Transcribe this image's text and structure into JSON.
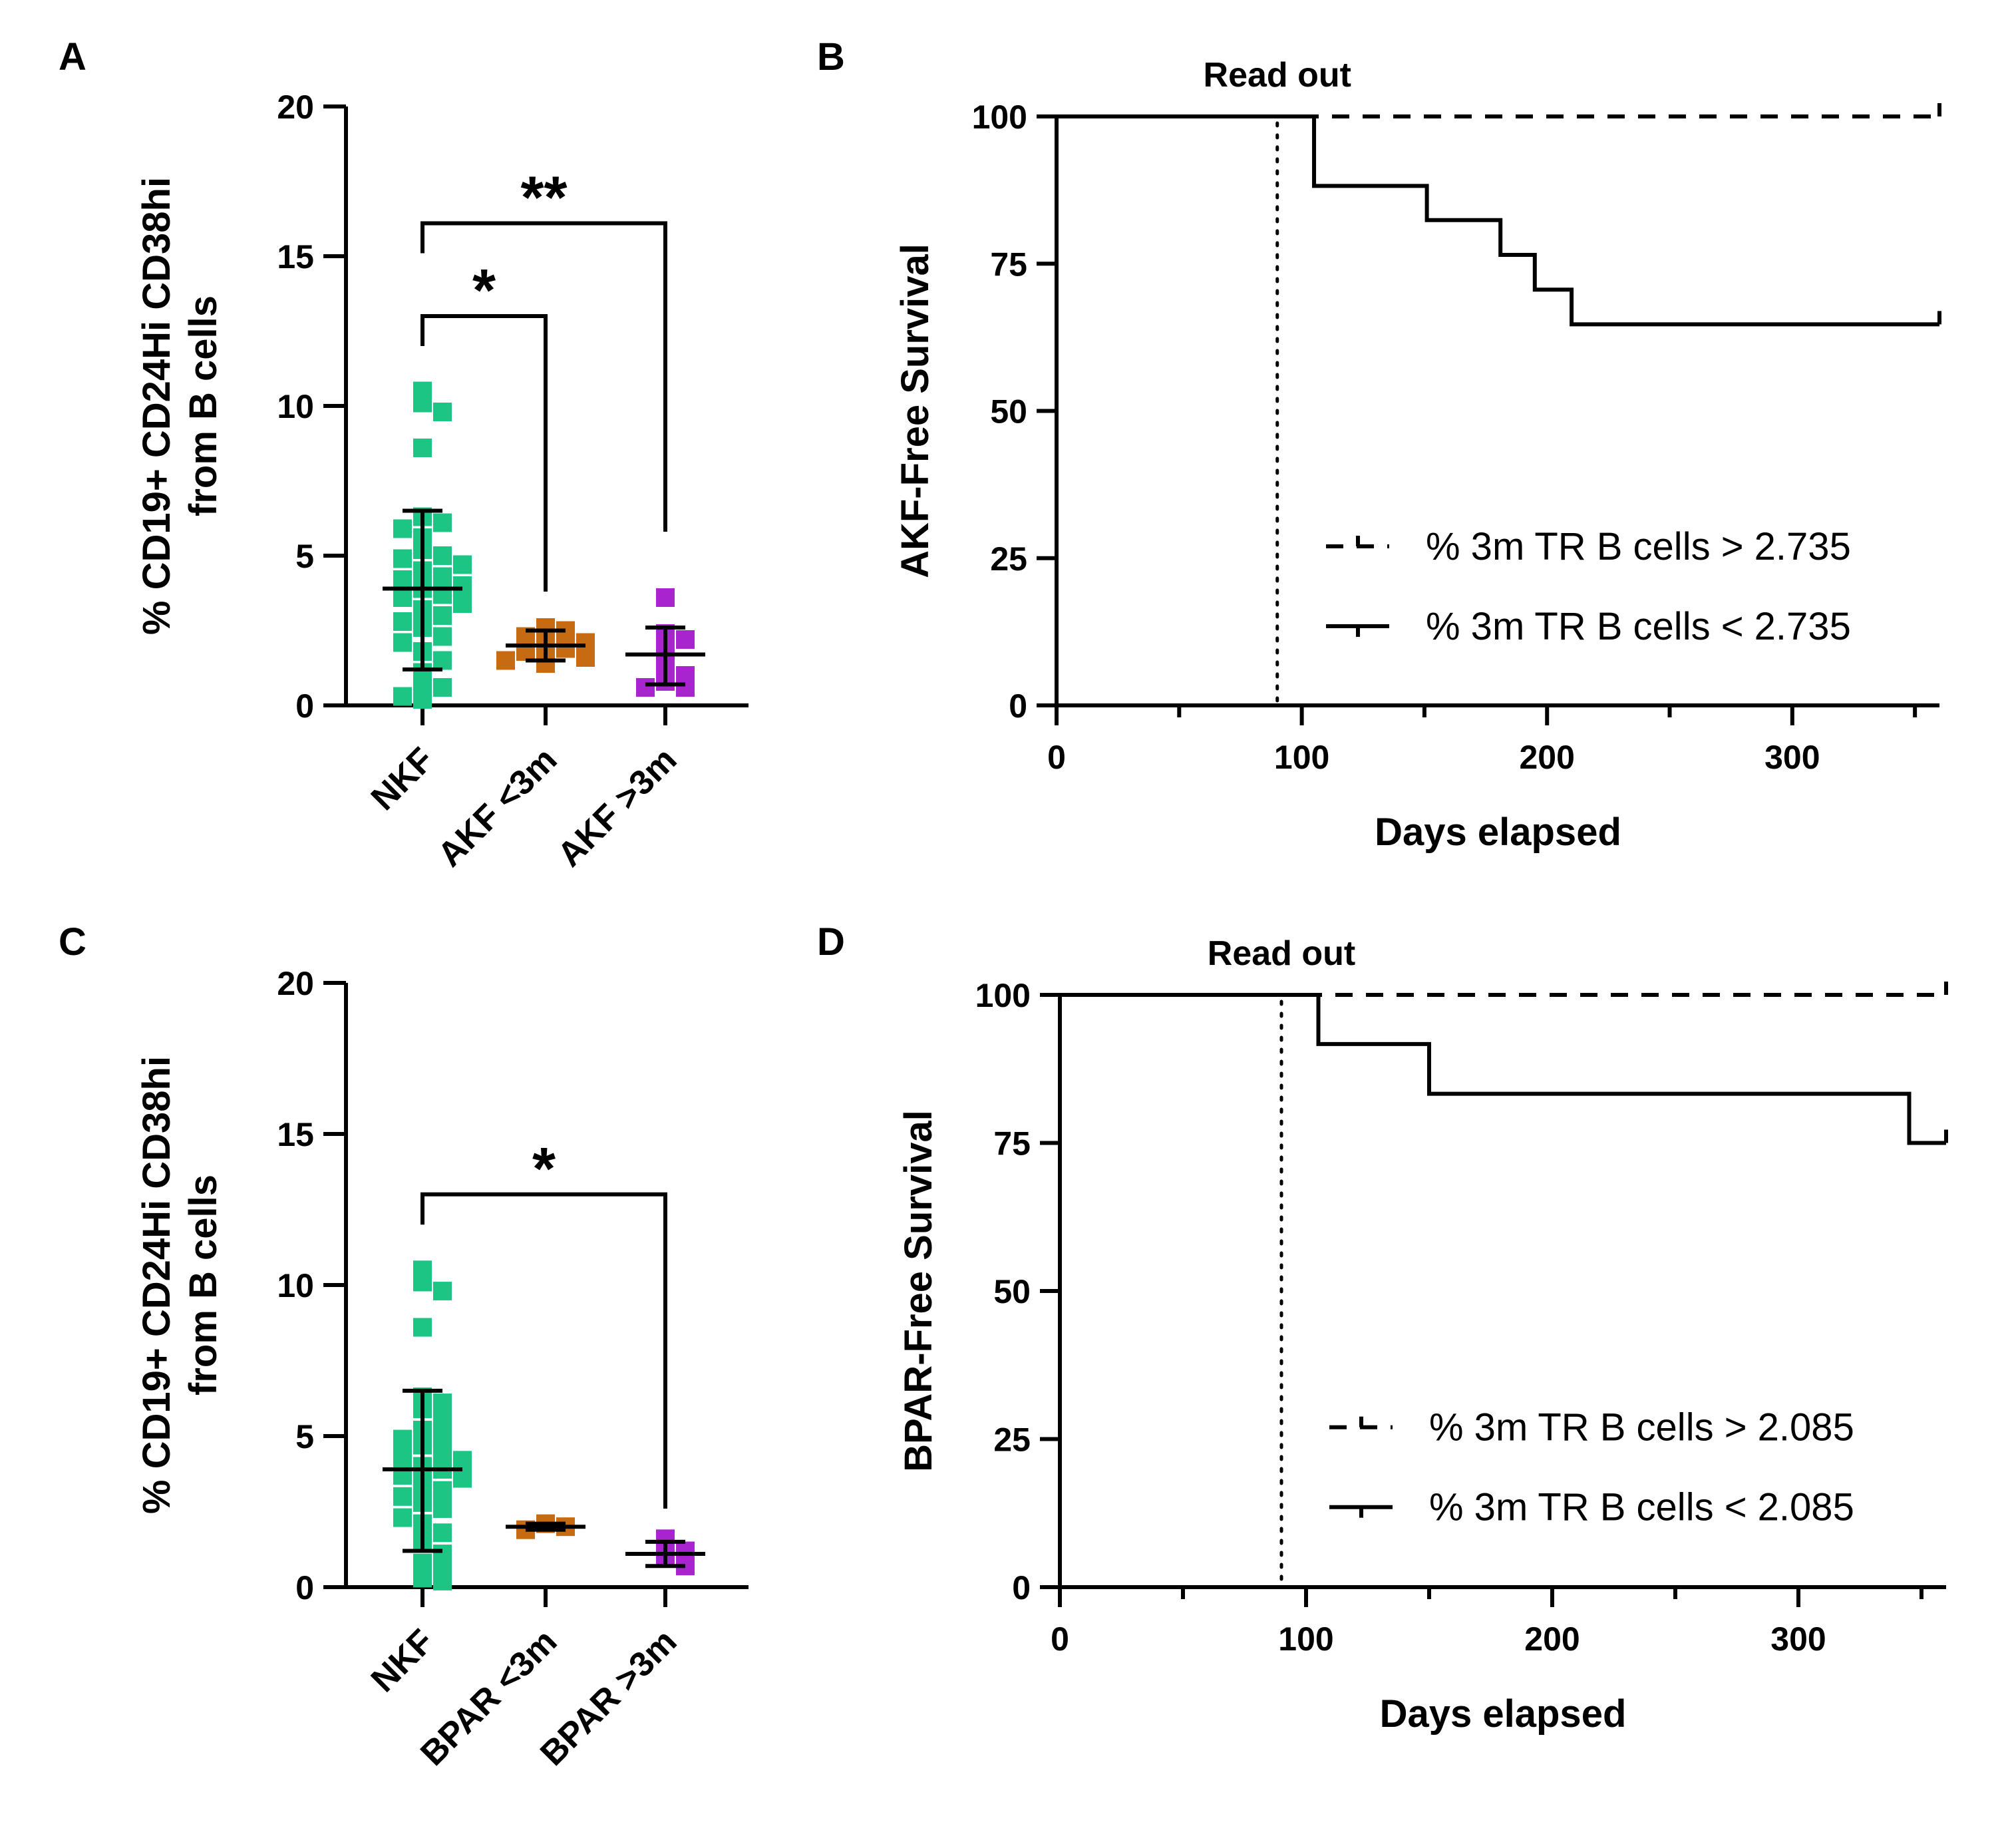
{
  "chart_data": [
    {
      "panel": "A",
      "type": "scatter",
      "ylabel": [
        "% CD19+ CD24Hi CD38hi",
        "from B cells"
      ],
      "ylim": [
        0,
        20
      ],
      "yticks": [
        0,
        5,
        10,
        15,
        20
      ],
      "groups": [
        {
          "name": "NKF",
          "color": "#1cc583",
          "mean": 3.9,
          "sd_low": 1.2,
          "sd_high": 6.5,
          "points": [
            10.5,
            10.1,
            9.8,
            8.6,
            6.3,
            6.1,
            5.9,
            5.6,
            5.2,
            5.0,
            4.9,
            4.7,
            4.5,
            4.3,
            4.2,
            4.0,
            3.9,
            3.7,
            3.6,
            3.4,
            3.2,
            3.0,
            2.8,
            2.6,
            2.3,
            2.1,
            1.8,
            1.5,
            1.1,
            0.8,
            0.6,
            0.3,
            0.2
          ]
        },
        {
          "name": "AKF <3m",
          "color": "#c76b12",
          "mean": 2.0,
          "sd_low": 1.5,
          "sd_high": 2.5,
          "points": [
            2.6,
            2.5,
            2.3,
            2.1,
            2.0,
            1.9,
            1.8,
            1.6,
            1.5,
            1.4
          ]
        },
        {
          "name": "AKF >3m",
          "color": "#a824cf",
          "mean": 1.7,
          "sd_low": 0.7,
          "sd_high": 2.6,
          "points": [
            3.6,
            2.4,
            2.2,
            1.9,
            1.3,
            1.0,
            0.8,
            0.6,
            0.6
          ]
        }
      ],
      "comparisons": [
        {
          "from": 0,
          "to": 1,
          "label": "*"
        },
        {
          "from": 0,
          "to": 2,
          "label": "**"
        }
      ]
    },
    {
      "panel": "B",
      "type": "line",
      "xlabel": "Days elapsed",
      "ylabel": "AKF-Free Survival",
      "xlim": [
        0,
        360
      ],
      "xticks": [
        0,
        100,
        200,
        300
      ],
      "ylim": [
        0,
        100
      ],
      "yticks": [
        0,
        25,
        50,
        75,
        100
      ],
      "annotation": "Read out",
      "readout_day": 90,
      "series": [
        {
          "name": "% 3m TR B cells > 2.735",
          "style": "dashed",
          "x": [
            0,
            360
          ],
          "y": [
            100,
            100
          ]
        },
        {
          "name": "% 3m TR B cells < 2.735",
          "style": "solid",
          "x": [
            0,
            105,
            105,
            151,
            151,
            181,
            181,
            195,
            195,
            210,
            210,
            360
          ],
          "y": [
            100,
            100,
            88.2,
            88.2,
            82.4,
            82.4,
            76.5,
            76.5,
            70.6,
            70.6,
            64.7,
            64.7
          ]
        }
      ]
    },
    {
      "panel": "C",
      "type": "scatter",
      "ylabel": [
        "% CD19+ CD24Hi CD38hi",
        "from B cells"
      ],
      "ylim": [
        0,
        20
      ],
      "yticks": [
        0,
        5,
        10,
        15,
        20
      ],
      "groups": [
        {
          "name": "NKF",
          "color": "#1cc583",
          "mean": 3.9,
          "sd_low": 1.2,
          "sd_high": 6.5,
          "points": [
            10.5,
            10.1,
            9.8,
            8.6,
            6.3,
            6.1,
            5.9,
            5.6,
            5.2,
            5.0,
            4.9,
            4.7,
            4.5,
            4.3,
            4.2,
            4.0,
            3.9,
            3.7,
            3.6,
            3.4,
            3.2,
            3.0,
            2.8,
            2.6,
            2.3,
            2.1,
            1.8,
            1.5,
            1.1,
            0.8,
            0.6,
            0.3,
            0.2
          ]
        },
        {
          "name": "BPAR <3m",
          "color": "#c76b12",
          "mean": 2.0,
          "sd_low": 1.9,
          "sd_high": 2.1,
          "points": [
            2.1,
            2.0,
            1.9
          ]
        },
        {
          "name": "BPAR >3m",
          "color": "#a824cf",
          "mean": 1.1,
          "sd_low": 0.7,
          "sd_high": 1.5,
          "points": [
            1.6,
            1.2,
            1.0,
            0.7
          ]
        }
      ],
      "comparisons": [
        {
          "from": 0,
          "to": 2,
          "label": "*"
        }
      ]
    },
    {
      "panel": "D",
      "type": "line",
      "xlabel": "Days elapsed",
      "ylabel": "BPAR-Free Survival",
      "xlim": [
        0,
        360
      ],
      "xticks": [
        0,
        100,
        200,
        300
      ],
      "ylim": [
        0,
        100
      ],
      "yticks": [
        0,
        25,
        50,
        75,
        100
      ],
      "annotation": "Read out",
      "readout_day": 90,
      "series": [
        {
          "name": "% 3m TR B cells > 2.085",
          "style": "dashed",
          "x": [
            0,
            360
          ],
          "y": [
            100,
            100
          ]
        },
        {
          "name": "% 3m TR B cells < 2.085",
          "style": "solid",
          "x": [
            0,
            105,
            105,
            150,
            150,
            345,
            345,
            360
          ],
          "y": [
            100,
            100,
            91.7,
            91.7,
            83.3,
            83.3,
            75,
            75
          ]
        }
      ]
    }
  ]
}
